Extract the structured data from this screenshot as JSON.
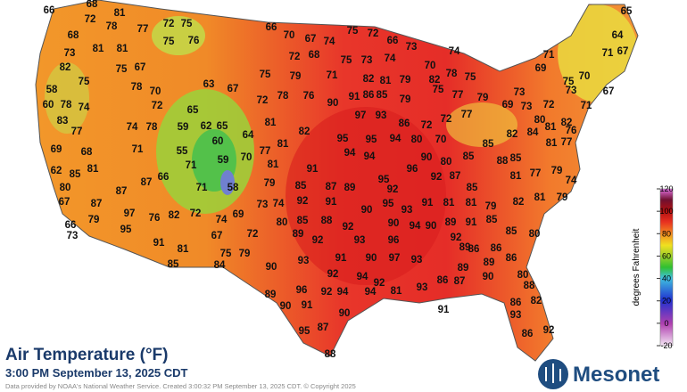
{
  "title": "Air Temperature (°F)",
  "subtitle": "3:00 PM September 13, 2025 CDT",
  "credit": "Data provided by NOAA's National Weather Service. Created 3:00:32 PM September 13, 2025 CDT. © Copyright 2025",
  "logo": "Mesonet",
  "colorbar": {
    "label": "degrees Fahrenheit",
    "range": [
      -20,
      120
    ],
    "ticks": [
      120,
      100,
      80,
      60,
      40,
      20,
      0,
      -20
    ]
  },
  "stations": [
    66,
    68,
    72,
    81,
    78,
    77,
    72,
    75,
    68,
    81,
    81,
    75,
    76,
    73,
    82,
    75,
    67,
    75,
    78,
    70,
    72,
    63,
    67,
    58,
    60,
    78,
    74,
    83,
    77,
    74,
    78,
    65,
    62,
    65,
    59,
    60,
    64,
    55,
    59,
    70,
    71,
    58,
    71,
    66,
    87,
    69,
    68,
    71,
    62,
    85,
    81,
    80,
    67,
    87,
    87,
    79,
    97,
    76,
    82,
    72,
    66,
    73,
    95,
    74,
    69,
    67,
    72,
    91,
    81,
    85,
    75,
    79,
    84,
    66,
    70,
    67,
    74,
    75,
    72,
    66,
    73,
    72,
    68,
    75,
    79,
    71,
    75,
    73,
    74,
    82,
    81,
    79,
    82,
    75,
    78,
    70,
    74,
    72,
    78,
    76,
    90,
    91,
    86,
    85,
    79,
    75,
    77,
    79,
    81,
    82,
    95,
    97,
    93,
    86,
    72,
    77,
    72,
    80,
    70,
    95,
    94,
    81,
    77,
    94,
    94,
    90,
    80,
    85,
    81,
    91,
    96,
    95,
    92,
    92,
    87,
    79,
    85,
    87,
    89,
    92,
    74,
    73,
    91,
    90,
    95,
    93,
    91,
    81,
    85,
    81,
    79,
    82,
    81,
    79,
    74,
    81,
    77,
    79,
    65,
    64,
    67,
    71,
    71,
    69,
    73,
    73,
    75,
    70,
    67,
    69,
    73,
    72,
    71,
    80,
    82,
    84,
    81,
    76,
    81,
    77,
    85,
    82,
    88,
    85,
    80,
    85,
    88,
    92,
    90,
    94,
    90,
    89,
    91,
    85,
    80,
    89,
    92,
    93,
    96,
    92,
    86,
    86,
    85,
    86,
    80,
    90,
    93,
    91,
    90,
    97,
    93,
    89,
    89,
    92,
    94,
    92,
    89,
    90,
    86,
    87,
    93,
    89,
    96,
    92,
    94,
    94,
    81,
    88,
    86,
    82,
    91,
    90,
    91,
    90,
    93,
    95,
    87,
    86,
    92,
    88
  ]
}
